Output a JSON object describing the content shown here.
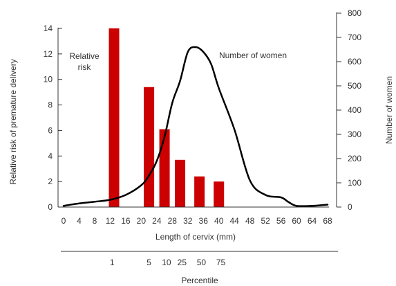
{
  "chart_data": {
    "type": "bar",
    "title": "",
    "xlabel": "Length of cervix (mm)",
    "ylabel_left": "Relative risk of premature delivery",
    "ylabel_right": "Number of women",
    "x_ticks": [
      0,
      4,
      8,
      12,
      16,
      20,
      24,
      28,
      32,
      36,
      40,
      44,
      48,
      52,
      56,
      60,
      64,
      68
    ],
    "xlim": [
      0,
      68
    ],
    "y_left_ticks": [
      0,
      2,
      4,
      6,
      8,
      10,
      12,
      14
    ],
    "ylim_left": [
      0,
      14
    ],
    "y_right_ticks": [
      0,
      100,
      200,
      300,
      400,
      500,
      600,
      700,
      800
    ],
    "ylim_right": [
      0,
      800
    ],
    "grid": false,
    "bar_color": "#cc0000",
    "line_color": "#000000",
    "series": [
      {
        "name": "Relative risk",
        "type": "bar",
        "axis": "left",
        "x": [
          13,
          22,
          26,
          30,
          35,
          40
        ],
        "values": [
          14.0,
          9.4,
          6.1,
          3.7,
          2.4,
          2.0
        ]
      },
      {
        "name": "Number of women",
        "type": "line",
        "axis": "right",
        "x": [
          0,
          4,
          8,
          12,
          16,
          20,
          22,
          24,
          26,
          28,
          30,
          32,
          34,
          36,
          38,
          40,
          44,
          48,
          52,
          56,
          58,
          60,
          64,
          68
        ],
        "values": [
          5,
          15,
          22,
          30,
          50,
          90,
          130,
          190,
          290,
          430,
          520,
          640,
          660,
          640,
          590,
          490,
          320,
          110,
          50,
          40,
          20,
          5,
          5,
          10
        ]
      }
    ],
    "annotations": {
      "relative_risk_line1": "Relative",
      "relative_risk_line2": "risk",
      "number_of_women": "Number of women"
    },
    "percentile": {
      "label": "Percentile",
      "ticks": [
        {
          "label": "1",
          "x": 12.5
        },
        {
          "label": "5",
          "x": 22
        },
        {
          "label": "10",
          "x": 26.5
        },
        {
          "label": "25",
          "x": 30.5
        },
        {
          "label": "50",
          "x": 35.5
        },
        {
          "label": "75",
          "x": 40.5
        }
      ]
    }
  }
}
